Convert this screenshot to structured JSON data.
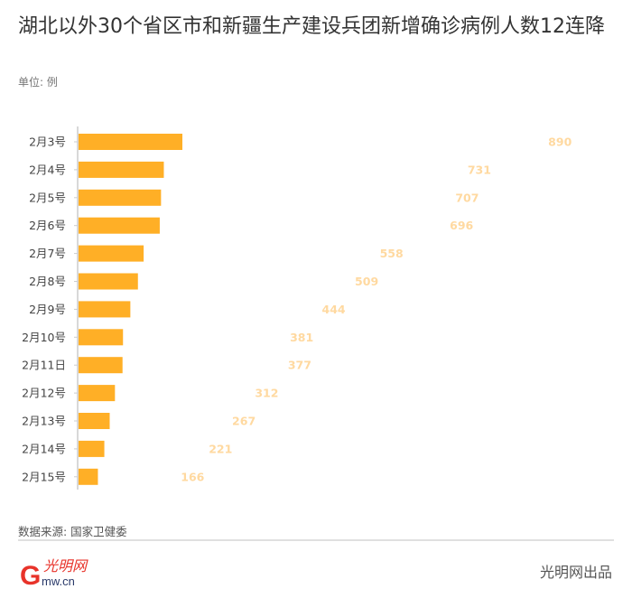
{
  "title": "湖北以外30个省区市和新疆生产建设兵团新增确诊病例人数12连降",
  "unit": "单位: 例",
  "source": "数据来源: 国家卫健委",
  "producer": "光明网出品",
  "logo_text": "光明网 gmw.cn",
  "colors": {
    "bar": "#ffaf26",
    "value_label": "#ffd9a0",
    "axis": "#cccccc"
  },
  "chart_data": {
    "type": "bar",
    "orientation": "horizontal",
    "categories": [
      "2月3号",
      "2月4号",
      "2月5号",
      "2月6号",
      "2月7号",
      "2月8号",
      "2月9号",
      "2月10号",
      "2月11日",
      "2月12号",
      "2月13号",
      "2月14号",
      "2月15号"
    ],
    "values": [
      890,
      731,
      707,
      696,
      558,
      509,
      444,
      381,
      377,
      312,
      267,
      221,
      166
    ],
    "title": "湖北以外30个省区市和新疆生产建设兵团新增确诊病例人数12连降",
    "xlabel": "",
    "ylabel": "",
    "grid": false
  }
}
